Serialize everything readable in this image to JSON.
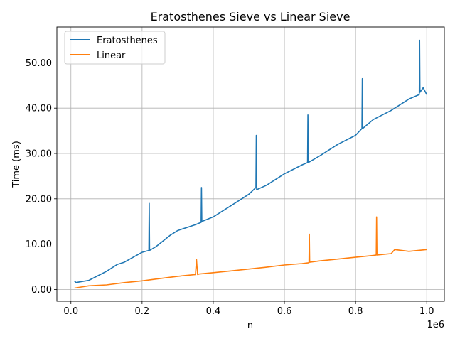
{
  "chart_data": {
    "type": "line",
    "title": "Eratosthenes Sieve vs Linear Sieve",
    "xlabel": "n",
    "ylabel": "Time (ms)",
    "x_offset_label": "1e6",
    "xlim": [
      -0.0395,
      1.0495
    ],
    "ylim": [
      -2.6,
      57.9
    ],
    "grid": true,
    "legend_position": "top-left",
    "x_ticks": [
      {
        "value": 0.0,
        "label": "0.0"
      },
      {
        "value": 0.2,
        "label": "0.2"
      },
      {
        "value": 0.4,
        "label": "0.4"
      },
      {
        "value": 0.6,
        "label": "0.6"
      },
      {
        "value": 0.8,
        "label": "0.8"
      },
      {
        "value": 1.0,
        "label": "1.0"
      }
    ],
    "y_ticks": [
      {
        "value": 0,
        "label": "0.00"
      },
      {
        "value": 10,
        "label": "10.00"
      },
      {
        "value": 20,
        "label": "20.00"
      },
      {
        "value": 30,
        "label": "30.00"
      },
      {
        "value": 40,
        "label": "40.00"
      },
      {
        "value": 50,
        "label": "50.00"
      }
    ],
    "series": [
      {
        "name": "Eratosthenes",
        "color": "#1f77b4",
        "x": [
          0.01,
          0.015,
          0.02,
          0.05,
          0.1,
          0.13,
          0.15,
          0.2,
          0.219,
          0.22,
          0.221,
          0.24,
          0.28,
          0.3,
          0.35,
          0.366,
          0.367,
          0.368,
          0.4,
          0.42,
          0.45,
          0.5,
          0.52,
          0.521,
          0.522,
          0.55,
          0.6,
          0.65,
          0.665,
          0.666,
          0.667,
          0.7,
          0.75,
          0.8,
          0.818,
          0.819,
          0.82,
          0.85,
          0.9,
          0.95,
          0.979,
          0.98,
          0.981,
          0.99,
          1.0
        ],
        "values": [
          1.8,
          1.5,
          1.6,
          2.0,
          4.0,
          5.5,
          6.0,
          8.2,
          8.6,
          19.0,
          8.6,
          9.5,
          12.0,
          13.0,
          14.3,
          14.8,
          22.5,
          15.0,
          16.0,
          17.0,
          18.5,
          21.0,
          22.5,
          34.0,
          22.0,
          23.0,
          25.5,
          27.5,
          28.0,
          38.5,
          28.0,
          29.5,
          32.0,
          34.0,
          35.5,
          46.5,
          35.5,
          37.5,
          39.5,
          42.0,
          43.0,
          55.0,
          43.5,
          44.5,
          43.0
        ]
      },
      {
        "name": "Linear",
        "color": "#ff7f0e",
        "x": [
          0.01,
          0.05,
          0.1,
          0.15,
          0.2,
          0.25,
          0.3,
          0.35,
          0.353,
          0.356,
          0.36,
          0.4,
          0.45,
          0.5,
          0.55,
          0.6,
          0.65,
          0.669,
          0.67,
          0.671,
          0.7,
          0.75,
          0.8,
          0.85,
          0.858,
          0.859,
          0.86,
          0.9,
          0.91,
          0.95,
          1.0
        ],
        "values": [
          0.3,
          0.8,
          1.0,
          1.5,
          1.9,
          2.4,
          2.9,
          3.3,
          6.6,
          3.3,
          3.4,
          3.7,
          4.1,
          4.5,
          4.9,
          5.4,
          5.7,
          5.9,
          12.2,
          6.0,
          6.3,
          6.7,
          7.1,
          7.5,
          7.6,
          16.0,
          7.6,
          7.9,
          8.8,
          8.4,
          8.8
        ]
      }
    ]
  }
}
